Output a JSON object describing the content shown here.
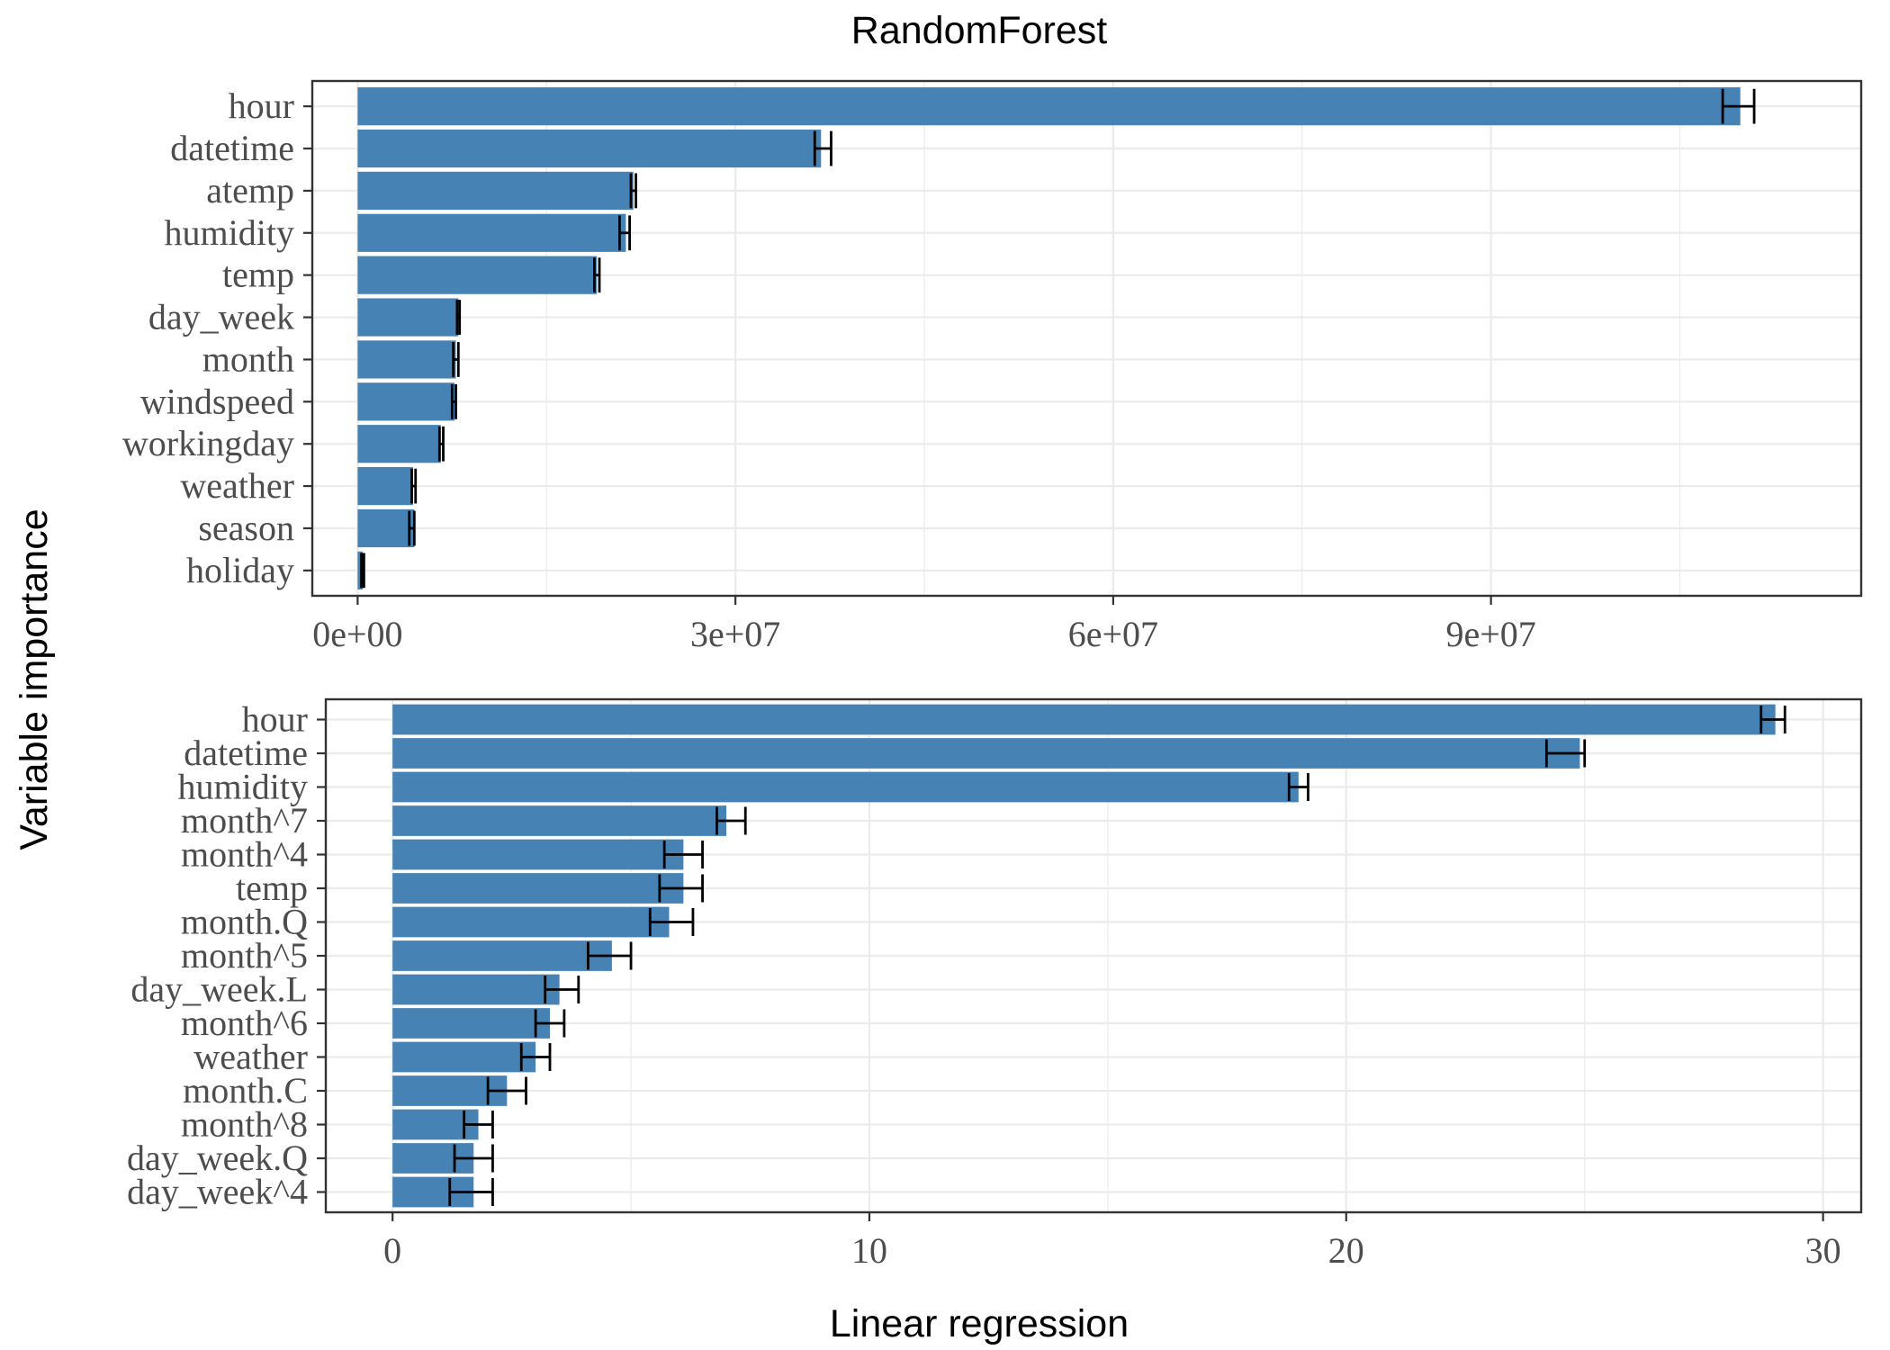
{
  "chart_data": [
    {
      "type": "bar",
      "orientation": "horizontal",
      "title": "RandomForest",
      "xlabel": "",
      "ylabel": "",
      "xlim": [
        -3600000,
        119400000
      ],
      "xticks": [
        0,
        30000000,
        60000000,
        90000000
      ],
      "xtick_labels": [
        "0e+00",
        "3e+07",
        "6e+07",
        "9e+07"
      ],
      "grid": true,
      "categories": [
        "hour",
        "datetime",
        "atemp",
        "humidity",
        "temp",
        "day_week",
        "month",
        "windspeed",
        "workingday",
        "weather",
        "season",
        "holiday"
      ],
      "values": [
        109800000,
        36800000,
        21900000,
        21300000,
        19000000,
        8000000,
        7800000,
        7700000,
        6600000,
        4400000,
        4500000,
        400000
      ],
      "error_low": [
        108400000,
        36300000,
        21700000,
        20800000,
        18800000,
        7900000,
        7600000,
        7500000,
        6500000,
        4300000,
        4100000,
        300000
      ],
      "error_high": [
        110900000,
        37600000,
        22100000,
        21600000,
        19200000,
        8100000,
        8000000,
        7800000,
        6800000,
        4600000,
        4500000,
        500000
      ]
    },
    {
      "type": "bar",
      "orientation": "horizontal",
      "title": "",
      "xlabel": "Linear regression",
      "ylabel": "",
      "xlim": [
        -1.4,
        30.8
      ],
      "xticks": [
        0,
        10,
        20,
        30
      ],
      "xtick_labels": [
        "0",
        "10",
        "20",
        "30"
      ],
      "grid": true,
      "categories": [
        "hour",
        "datetime",
        "humidity",
        "month^7",
        "month^4",
        "temp",
        "month.Q",
        "month^5",
        "day_week.L",
        "month^6",
        "weather",
        "month.C",
        "month^8",
        "day_week.Q",
        "day_week^4"
      ],
      "values": [
        29.0,
        24.9,
        19.0,
        7.0,
        6.1,
        6.1,
        5.8,
        4.6,
        3.5,
        3.3,
        3.0,
        2.4,
        1.8,
        1.7,
        1.7
      ],
      "error_low": [
        28.7,
        24.2,
        18.8,
        6.8,
        5.7,
        5.6,
        5.4,
        4.1,
        3.2,
        3.0,
        2.7,
        2.0,
        1.5,
        1.3,
        1.2
      ],
      "error_high": [
        29.2,
        25.0,
        19.2,
        7.4,
        6.5,
        6.5,
        6.3,
        5.0,
        3.9,
        3.6,
        3.3,
        2.8,
        2.1,
        2.1,
        2.1
      ]
    }
  ],
  "shared_ylabel": "Variable importance",
  "colors": {
    "bar": "#4682B4",
    "errorbar": "#000000",
    "grid": "#EBEBEB",
    "panel_border": "#333333",
    "axis_text": "#4D4D4D"
  }
}
